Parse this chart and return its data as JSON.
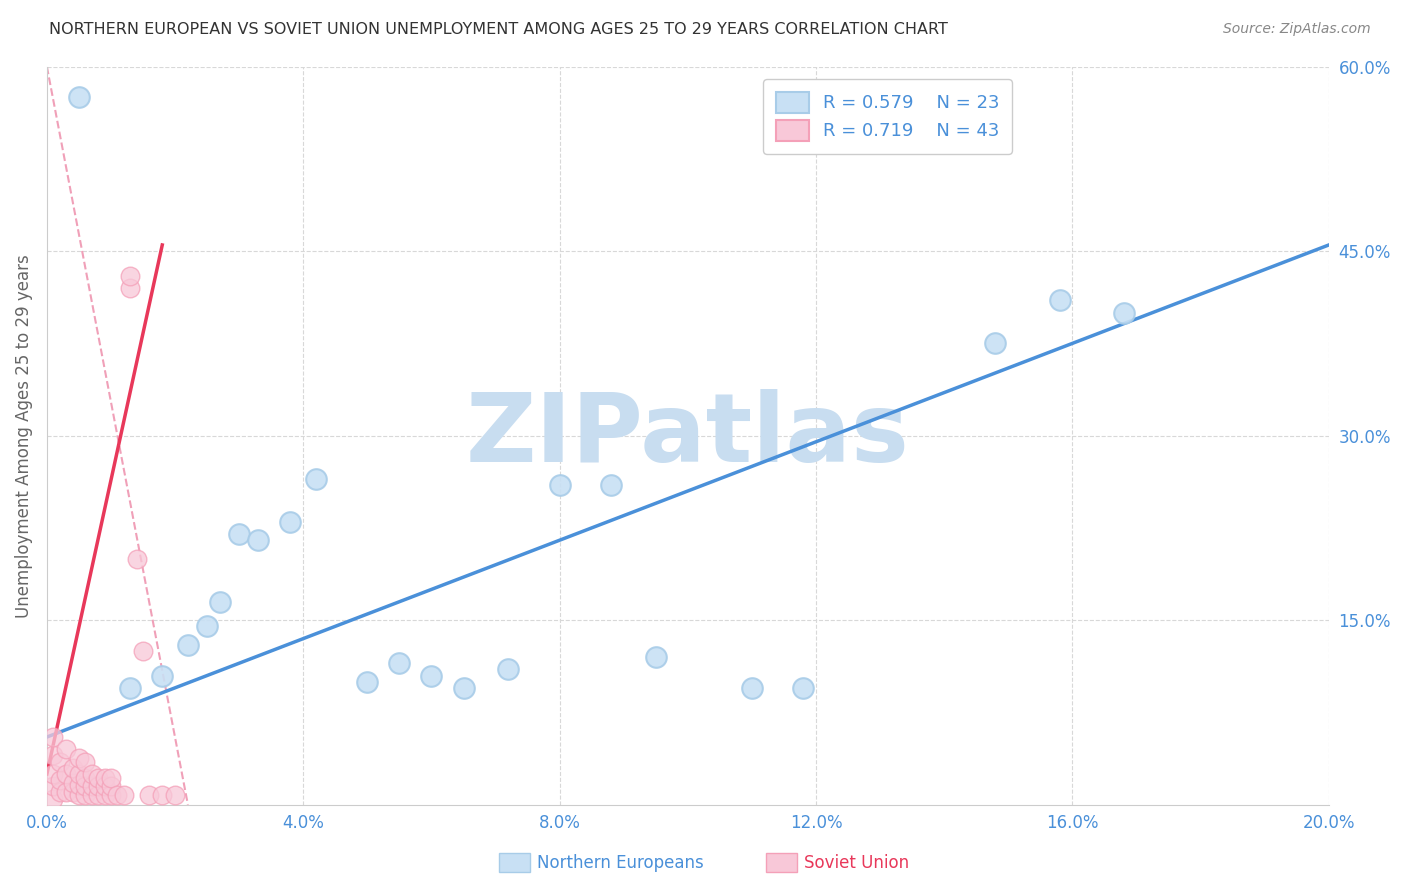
{
  "title": "NORTHERN EUROPEAN VS SOVIET UNION UNEMPLOYMENT AMONG AGES 25 TO 29 YEARS CORRELATION CHART",
  "source": "Source: ZipAtlas.com",
  "ylabel": "Unemployment Among Ages 25 to 29 years",
  "xlim": [
    0.0,
    0.2
  ],
  "ylim": [
    0.0,
    0.6
  ],
  "xticks": [
    0.0,
    0.04,
    0.08,
    0.12,
    0.16,
    0.2
  ],
  "yticks_right": [
    0.0,
    0.15,
    0.3,
    0.45,
    0.6
  ],
  "ytick_right_labels": [
    "",
    "15.0%",
    "30.0%",
    "45.0%",
    "60.0%"
  ],
  "xtick_labels": [
    "0.0%",
    "4.0%",
    "8.0%",
    "12.0%",
    "16.0%",
    "20.0%"
  ],
  "legend_r_blue": "R = 0.579",
  "legend_n_blue": "N = 23",
  "legend_r_pink": "R = 0.719",
  "legend_n_pink": "N = 43",
  "watermark": "ZIPatlas",
  "blue_scatter_x": [
    0.005,
    0.013,
    0.018,
    0.022,
    0.025,
    0.027,
    0.03,
    0.033,
    0.038,
    0.042,
    0.05,
    0.055,
    0.06,
    0.065,
    0.072,
    0.08,
    0.088,
    0.095,
    0.11,
    0.118,
    0.148,
    0.158,
    0.168
  ],
  "blue_scatter_y": [
    0.575,
    0.095,
    0.105,
    0.13,
    0.145,
    0.165,
    0.22,
    0.215,
    0.23,
    0.265,
    0.1,
    0.115,
    0.105,
    0.095,
    0.11,
    0.26,
    0.26,
    0.12,
    0.095,
    0.095,
    0.375,
    0.41,
    0.4
  ],
  "pink_scatter_x": [
    0.001,
    0.001,
    0.001,
    0.001,
    0.001,
    0.002,
    0.002,
    0.002,
    0.003,
    0.003,
    0.003,
    0.004,
    0.004,
    0.004,
    0.005,
    0.005,
    0.005,
    0.005,
    0.006,
    0.006,
    0.006,
    0.006,
    0.007,
    0.007,
    0.007,
    0.008,
    0.008,
    0.008,
    0.009,
    0.009,
    0.009,
    0.01,
    0.01,
    0.01,
    0.011,
    0.012,
    0.013,
    0.013,
    0.014,
    0.015,
    0.016,
    0.018,
    0.02
  ],
  "pink_scatter_y": [
    0.005,
    0.015,
    0.025,
    0.04,
    0.055,
    0.01,
    0.02,
    0.035,
    0.01,
    0.025,
    0.045,
    0.01,
    0.018,
    0.03,
    0.008,
    0.016,
    0.025,
    0.038,
    0.008,
    0.015,
    0.022,
    0.035,
    0.008,
    0.015,
    0.025,
    0.008,
    0.015,
    0.022,
    0.008,
    0.015,
    0.022,
    0.008,
    0.015,
    0.022,
    0.008,
    0.008,
    0.42,
    0.43,
    0.2,
    0.125,
    0.008,
    0.008,
    0.008
  ],
  "blue_line_x": [
    0.0,
    0.2
  ],
  "blue_line_y": [
    0.055,
    0.455
  ],
  "pink_line_x": [
    0.0,
    0.018
  ],
  "pink_line_y": [
    0.025,
    0.455
  ],
  "pink_dashed_line_x": [
    0.0,
    0.022
  ],
  "pink_dashed_line_y": [
    0.6,
    0.0
  ],
  "blue_color": "#a8cce8",
  "blue_fill_color": "#c8e0f4",
  "blue_line_color": "#4a90d9",
  "pink_color": "#f4a0b8",
  "pink_fill_color": "#f8c8d8",
  "pink_line_color": "#e8385a",
  "pink_dashed_color": "#f0a0b8",
  "background_color": "#ffffff",
  "grid_color": "#d8d8d8",
  "title_color": "#333333",
  "axis_label_color": "#666666",
  "tick_label_color_blue": "#4a90d9",
  "watermark_color": "#c8ddf0",
  "legend_text_color": "#4a90d9",
  "legend_bg": "#ffffff",
  "legend_edge": "#cccccc"
}
